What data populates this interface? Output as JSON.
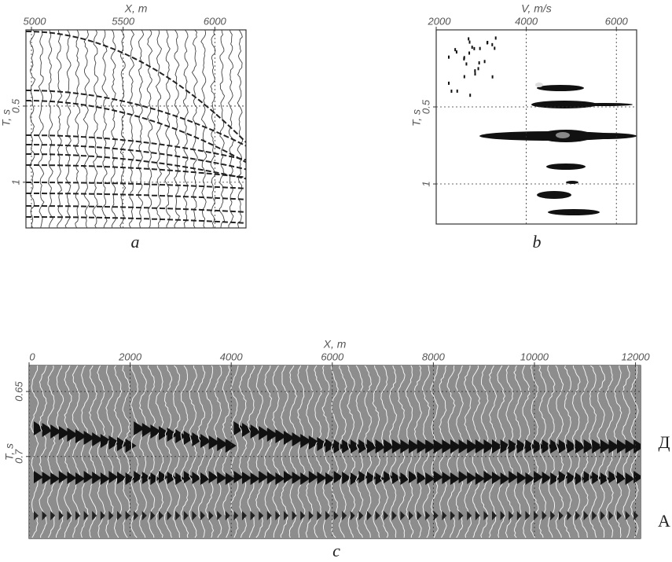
{
  "panels": [
    {
      "caption": "a",
      "x_label": "X, m",
      "y_label": "T, s",
      "xlim": [
        4970,
        6170
      ],
      "ylim": [
        0,
        1.3
      ],
      "y_inverted": true,
      "xticks": [
        5000,
        5500,
        6000
      ],
      "yticks": [
        0.5,
        1
      ],
      "grid": true
    },
    {
      "caption": "b",
      "x_label": "V, m/s",
      "y_label": "T, s",
      "xlim": [
        2000,
        6450
      ],
      "ylim": [
        0,
        1.26
      ],
      "y_inverted": true,
      "xticks": [
        2000,
        4000,
        6000
      ],
      "yticks": [
        0.5,
        1
      ],
      "grid": true
    },
    {
      "caption": "c",
      "x_label": "X, m",
      "y_label": "T, s",
      "xlim": [
        0,
        12100
      ],
      "ylim": [
        0.63,
        0.763
      ],
      "y_inverted": true,
      "xticks": [
        0,
        2000,
        4000,
        6000,
        8000,
        10000,
        12000
      ],
      "yticks": [
        0.65,
        0.7
      ],
      "grid": true,
      "side_labels": [
        "Д",
        "А"
      ]
    }
  ]
}
